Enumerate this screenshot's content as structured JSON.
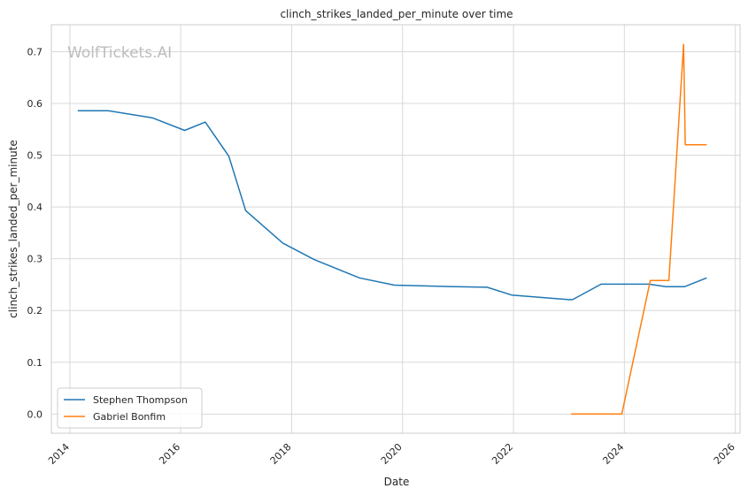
{
  "watermark": "WolfTickets.AI",
  "chart_data": {
    "type": "line",
    "title": "clinch_strikes_landed_per_minute over time",
    "xlabel": "Date",
    "ylabel": "clinch_strikes_landed_per_minute",
    "xlim": [
      "2013-09-01",
      "2026-02-01"
    ],
    "ylim": [
      -0.037,
      0.752
    ],
    "x_ticks": [
      "2014",
      "2016",
      "2018",
      "2020",
      "2022",
      "2024",
      "2026"
    ],
    "y_ticks": [
      "0.0",
      "0.1",
      "0.2",
      "0.3",
      "0.4",
      "0.5",
      "0.6",
      "0.7"
    ],
    "grid": true,
    "legend_position": "lower left",
    "series": [
      {
        "name": "Stephen Thompson",
        "color": "#1f77b4",
        "points": [
          [
            "2014-02-22",
            0.586
          ],
          [
            "2014-09-10",
            0.586
          ],
          [
            "2015-07-01",
            0.572
          ],
          [
            "2016-01-27",
            0.548
          ],
          [
            "2016-06-11",
            0.564
          ],
          [
            "2016-11-13",
            0.498
          ],
          [
            "2017-03-04",
            0.393
          ],
          [
            "2017-11-04",
            0.33
          ],
          [
            "2018-06-01",
            0.298
          ],
          [
            "2019-03-23",
            0.263
          ],
          [
            "2019-11-09",
            0.249
          ],
          [
            "2020-12-19",
            0.246
          ],
          [
            "2021-07-10",
            0.245
          ],
          [
            "2021-12-20",
            0.23
          ],
          [
            "2023-01-01",
            0.221
          ],
          [
            "2023-01-25",
            0.221
          ],
          [
            "2023-08-01",
            0.251
          ],
          [
            "2024-06-10",
            0.251
          ],
          [
            "2024-10-01",
            0.246
          ],
          [
            "2025-01-30",
            0.246
          ],
          [
            "2025-06-26",
            0.263
          ]
        ]
      },
      {
        "name": "Gabriel Bonfim",
        "color": "#ff7f0e",
        "points": [
          [
            "2023-01-15",
            0.0
          ],
          [
            "2023-12-15",
            0.0
          ],
          [
            "2024-06-20",
            0.258
          ],
          [
            "2024-10-20",
            0.258
          ],
          [
            "2025-01-25",
            0.714
          ],
          [
            "2025-02-05",
            0.52
          ],
          [
            "2025-06-26",
            0.52
          ]
        ]
      }
    ]
  }
}
